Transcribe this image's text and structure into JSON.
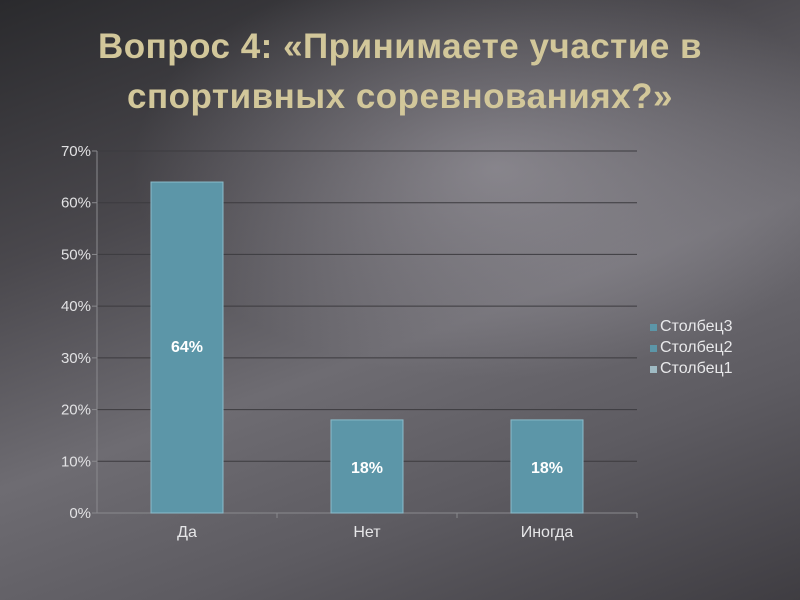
{
  "slide": {
    "title": "Вопрос 4: «Принимаете участие в спортивных соревнованиях?»"
  },
  "colors": {
    "title": "#d2c79a",
    "bar": "#5c96a8",
    "bar_edge": "#8bbccb",
    "grid": "#3c3b3f",
    "axis": "#8a8a8e"
  },
  "chart_data": {
    "type": "bar",
    "categories": [
      "Да",
      "Нет",
      "Иногда"
    ],
    "series": [
      {
        "name": "Столбец1",
        "values": [
          64,
          18,
          18
        ],
        "data_labels": [
          "64%",
          "18%",
          "18%"
        ]
      }
    ],
    "ylim": [
      0,
      70
    ],
    "y_ticks": [
      0,
      10,
      20,
      30,
      40,
      50,
      60,
      70
    ],
    "y_tick_labels": [
      "0%",
      "10%",
      "20%",
      "30%",
      "40%",
      "50%",
      "60%",
      "70%"
    ],
    "legend": [
      "Столбец3",
      "Столбец2",
      "Столбец1"
    ],
    "legend_position": "right",
    "grid": true,
    "title": "",
    "xlabel": "",
    "ylabel": ""
  }
}
